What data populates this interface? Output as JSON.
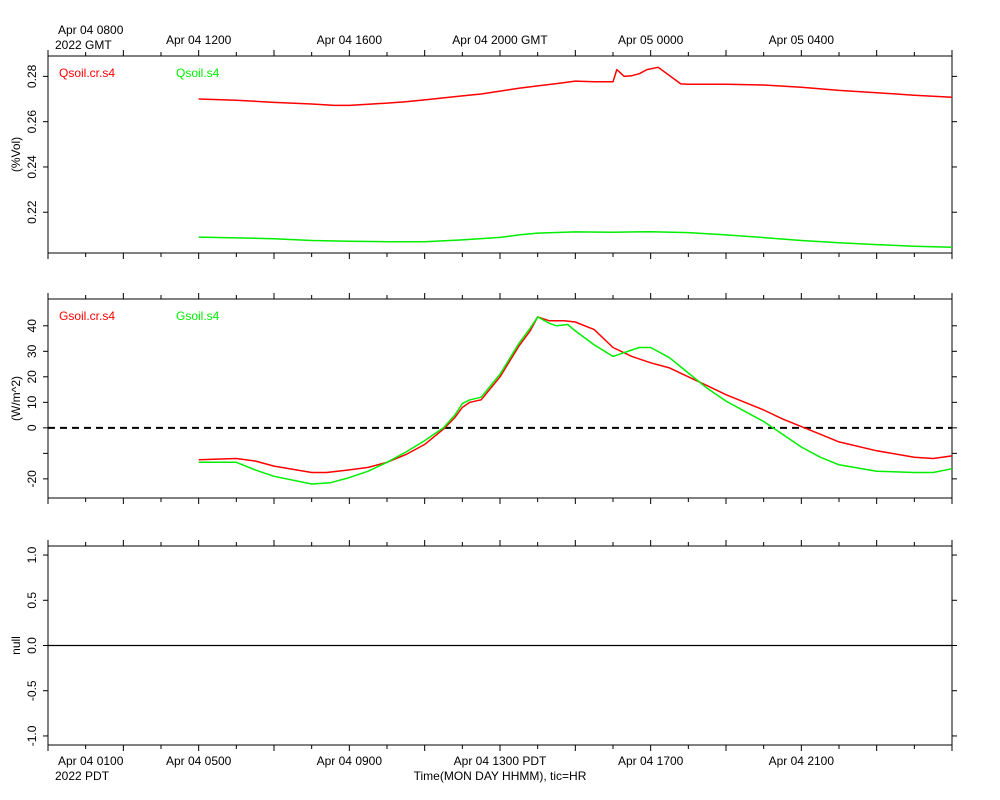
{
  "time_axis": {
    "gmt_start_line1": "Apr 04 0800",
    "gmt_start_line2": "2022 GMT",
    "pdt_start_line1": "Apr 04 0100",
    "pdt_start_line2": "2022 PDT",
    "xlabel": "Time(MON DAY HHMM), tic=HR",
    "gmt_labels": [
      "Apr 04 1200",
      "Apr 04 1600",
      "Apr 04 2000 GMT",
      "Apr 05 0000",
      "Apr 05 0400"
    ],
    "pdt_labels": [
      "Apr 04 0500",
      "Apr 04 0900",
      "Apr 04 1300 PDT",
      "Apr 04 1700",
      "Apr 04 2100"
    ],
    "label_hours": [
      4,
      8,
      12,
      16,
      20
    ],
    "hours_range": [
      0,
      24
    ]
  },
  "colors": {
    "red": "#ff0000",
    "green": "#00ee00",
    "axis": "#000000"
  },
  "chart_data": [
    {
      "type": "line",
      "ylabel": "(%Vol)",
      "ylim": [
        0.202,
        0.289
      ],
      "yticks": [
        0.22,
        0.24,
        0.26,
        0.28
      ],
      "ytick_labels": [
        "0.22",
        "0.24",
        "0.26",
        "0.28"
      ],
      "series": [
        {
          "name": "Qsoil.cr.s4",
          "color": "#ff0000",
          "x": [
            4,
            5,
            6,
            7,
            7.6,
            8,
            8.5,
            9,
            9.5,
            10,
            10.5,
            11,
            11.5,
            12,
            12.5,
            13,
            13.5,
            14,
            14.5,
            15,
            15.1,
            15.3,
            15.5,
            15.7,
            15.9,
            16.2,
            16.8,
            17,
            17.5,
            18,
            19,
            20,
            21,
            22,
            23,
            24
          ],
          "y": [
            0.27,
            0.2695,
            0.2685,
            0.2678,
            0.2672,
            0.2672,
            0.2677,
            0.2682,
            0.2688,
            0.2696,
            0.2705,
            0.2714,
            0.2722,
            0.2735,
            0.2748,
            0.2758,
            0.2768,
            0.2779,
            0.2776,
            0.2776,
            0.283,
            0.28,
            0.2803,
            0.2812,
            0.283,
            0.284,
            0.2767,
            0.2765,
            0.2765,
            0.2765,
            0.2762,
            0.2752,
            0.2738,
            0.2728,
            0.2717,
            0.2708
          ]
        },
        {
          "name": "Qsoil.s4",
          "color": "#00ee00",
          "x": [
            4,
            6,
            7,
            8,
            9,
            10,
            11,
            12,
            12.5,
            13,
            14,
            15,
            16,
            17,
            18,
            19,
            20,
            21,
            22,
            23,
            24
          ],
          "y": [
            0.209,
            0.2083,
            0.2075,
            0.2072,
            0.207,
            0.207,
            0.2078,
            0.2089,
            0.21,
            0.2108,
            0.2113,
            0.2112,
            0.2114,
            0.211,
            0.21,
            0.2088,
            0.2075,
            0.2065,
            0.2057,
            0.205,
            0.2045
          ]
        }
      ]
    },
    {
      "type": "line",
      "ylabel": "(W/m^2)",
      "ylim": [
        -27.5,
        50.5
      ],
      "yticks": [
        -20,
        0,
        10,
        20,
        30,
        40
      ],
      "ytick_labels": [
        "-20",
        "0",
        "10",
        "20",
        "30",
        "40"
      ],
      "minor_yticks": [
        -10
      ],
      "zero_line": true,
      "series": [
        {
          "name": "Gsoil.cr.s4",
          "color": "#ff0000",
          "x": [
            4,
            5,
            5.5,
            6,
            7,
            7.4,
            8,
            8.5,
            9,
            9.5,
            10,
            10.5,
            10.8,
            11,
            11.2,
            11.5,
            12,
            12.5,
            12.8,
            13,
            13.3,
            13.7,
            14,
            14.5,
            15,
            15.5,
            16,
            16.5,
            17,
            17.5,
            18,
            18.5,
            19,
            19.5,
            20,
            20.5,
            21,
            22,
            23,
            23.5,
            24
          ],
          "y": [
            -12.5,
            -12,
            -13,
            -15,
            -17.5,
            -17.5,
            -16.5,
            -15.5,
            -13.5,
            -10.5,
            -6.5,
            -0.5,
            4,
            8,
            10,
            11,
            20,
            32,
            38,
            43.5,
            42,
            42,
            41.5,
            38.5,
            31.5,
            28,
            25.5,
            23.5,
            20,
            16.5,
            13,
            10,
            7,
            3.5,
            0.5,
            -2.5,
            -5.5,
            -9,
            -11.5,
            -12,
            -11
          ]
        },
        {
          "name": "Gsoil.s4",
          "color": "#00ee00",
          "x": [
            4,
            5,
            5.5,
            6,
            7,
            7.5,
            8,
            8.5,
            9,
            9.5,
            10,
            10.5,
            10.8,
            11,
            11.2,
            11.5,
            12,
            12.5,
            12.8,
            13,
            13.3,
            13.5,
            13.8,
            14,
            14.5,
            15,
            15.5,
            15.7,
            16,
            16.5,
            17,
            17.5,
            18,
            18.5,
            19,
            19.5,
            20,
            20.5,
            21,
            22,
            23,
            23.5,
            24
          ],
          "y": [
            -13.5,
            -13.5,
            -16.5,
            -19,
            -22,
            -21.5,
            -19.5,
            -17,
            -13.5,
            -9.5,
            -5,
            0,
            5,
            9.5,
            11,
            12,
            21,
            33,
            39,
            43.5,
            41,
            40,
            40.5,
            38,
            32.5,
            28,
            30.5,
            31.5,
            31.5,
            27.5,
            21.5,
            15.5,
            10.5,
            6.5,
            2.5,
            -2.5,
            -7.5,
            -11.5,
            -14.5,
            -17,
            -17.5,
            -17.5,
            -16
          ]
        }
      ]
    },
    {
      "type": "line",
      "ylabel": "null",
      "ylim": [
        -1.1,
        1.1
      ],
      "yticks": [
        -1.0,
        -0.5,
        0.0,
        0.5,
        1.0
      ],
      "ytick_labels": [
        "-1.0",
        "-0.5",
        "0.0",
        "0.5",
        "1.0"
      ],
      "zero_line": true,
      "series": []
    }
  ]
}
